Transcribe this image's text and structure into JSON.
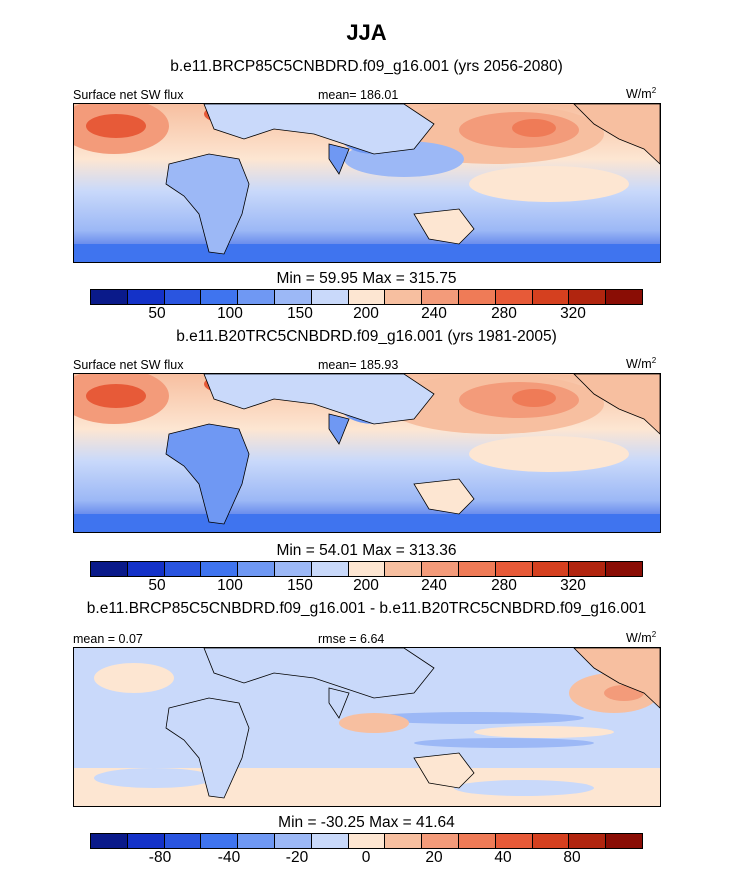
{
  "figure": {
    "title": "JJA",
    "variable_label": "Surface net SW flux",
    "units_base": "W/m",
    "units_exp": "2"
  },
  "panels": [
    {
      "subtitle": "b.e11.BRCP85C5CNBDRD.f09_g16.001 (yrs 2056-2080)",
      "left_label": "Surface net SW flux",
      "center_label": "mean= 186.01",
      "minmax": "Min =  59.95 Max = 315.75",
      "ticks": [
        "50",
        "100",
        "150",
        "200",
        "240",
        "280",
        "320"
      ],
      "colors": [
        "#0a1a8a",
        "#1432c8",
        "#2a55e0",
        "#3f74ef",
        "#6f98f3",
        "#9cb8f6",
        "#c9d9fa",
        "#fde6d2",
        "#f7bfa0",
        "#f39b7a",
        "#ef7b57",
        "#e75a38",
        "#d5401f",
        "#b1250f",
        "#8a0d05"
      ]
    },
    {
      "subtitle": "b.e11.B20TRC5CNBDRD.f09_g16.001 (yrs 1981-2005)",
      "left_label": "Surface net SW flux",
      "center_label": "mean= 185.93",
      "minmax": "Min =  54.01 Max = 313.36",
      "ticks": [
        "50",
        "100",
        "150",
        "200",
        "240",
        "280",
        "320"
      ],
      "colors": [
        "#0a1a8a",
        "#1432c8",
        "#2a55e0",
        "#3f74ef",
        "#6f98f3",
        "#9cb8f6",
        "#c9d9fa",
        "#fde6d2",
        "#f7bfa0",
        "#f39b7a",
        "#ef7b57",
        "#e75a38",
        "#d5401f",
        "#b1250f",
        "#8a0d05"
      ]
    },
    {
      "subtitle": "b.e11.BRCP85C5CNBDRD.f09_g16.001 - b.e11.B20TRC5CNBDRD.f09_g16.001",
      "left_label": "mean =   0.07",
      "center_label": "rmse =   6.64",
      "minmax": "Min = -30.25 Max =  41.64",
      "ticks": [
        "-80",
        "-40",
        "-20",
        "0",
        "20",
        "40",
        "80"
      ],
      "colors": [
        "#0a1a8a",
        "#1432c8",
        "#2a55e0",
        "#3f74ef",
        "#6f98f3",
        "#9cb8f6",
        "#c9d9fa",
        "#fde6d2",
        "#f7bfa0",
        "#f39b7a",
        "#ef7b57",
        "#e75a38",
        "#d5401f",
        "#b1250f",
        "#8a0d05"
      ]
    }
  ]
}
